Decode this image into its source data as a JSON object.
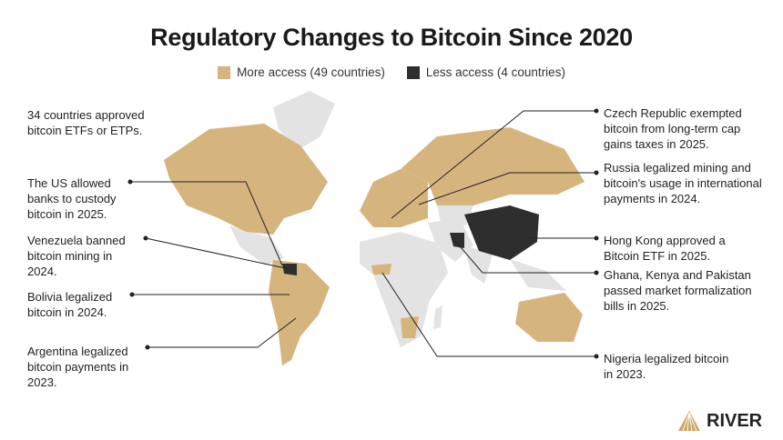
{
  "title": "Regulatory Changes to Bitcoin Since 2020",
  "legend": [
    {
      "label": "More access (49 countries)",
      "color": "#d6b47e"
    },
    {
      "label": "Less access (4 countries)",
      "color": "#2e2e2e"
    }
  ],
  "colors": {
    "no_change": "#e3e3e3",
    "more_access": "#d6b47e",
    "less_access": "#2e2e2e"
  },
  "left_notes": [
    "34 countries approved bitcoin ETFs or ETPs.",
    "The US allowed banks to custody bitcoin in 2025.",
    "Venezuela banned bitcoin mining in 2024.",
    "Bolivia legalized bitcoin in 2024.",
    "Argentina legalized bitcoin payments in 2023."
  ],
  "right_notes": [
    "Czech Republic exempted bitcoin from long-term cap gains taxes in 2025.",
    "Russia legalized mining and bitcoin's usage in international payments in 2024.",
    "Hong Kong approved a Bitcoin ETF in 2025.",
    "Ghana, Kenya and Pakistan passed market formalization bills in 2025.",
    "Nigeria legalized bitcoin in 2023."
  ],
  "logo": "RIVER"
}
